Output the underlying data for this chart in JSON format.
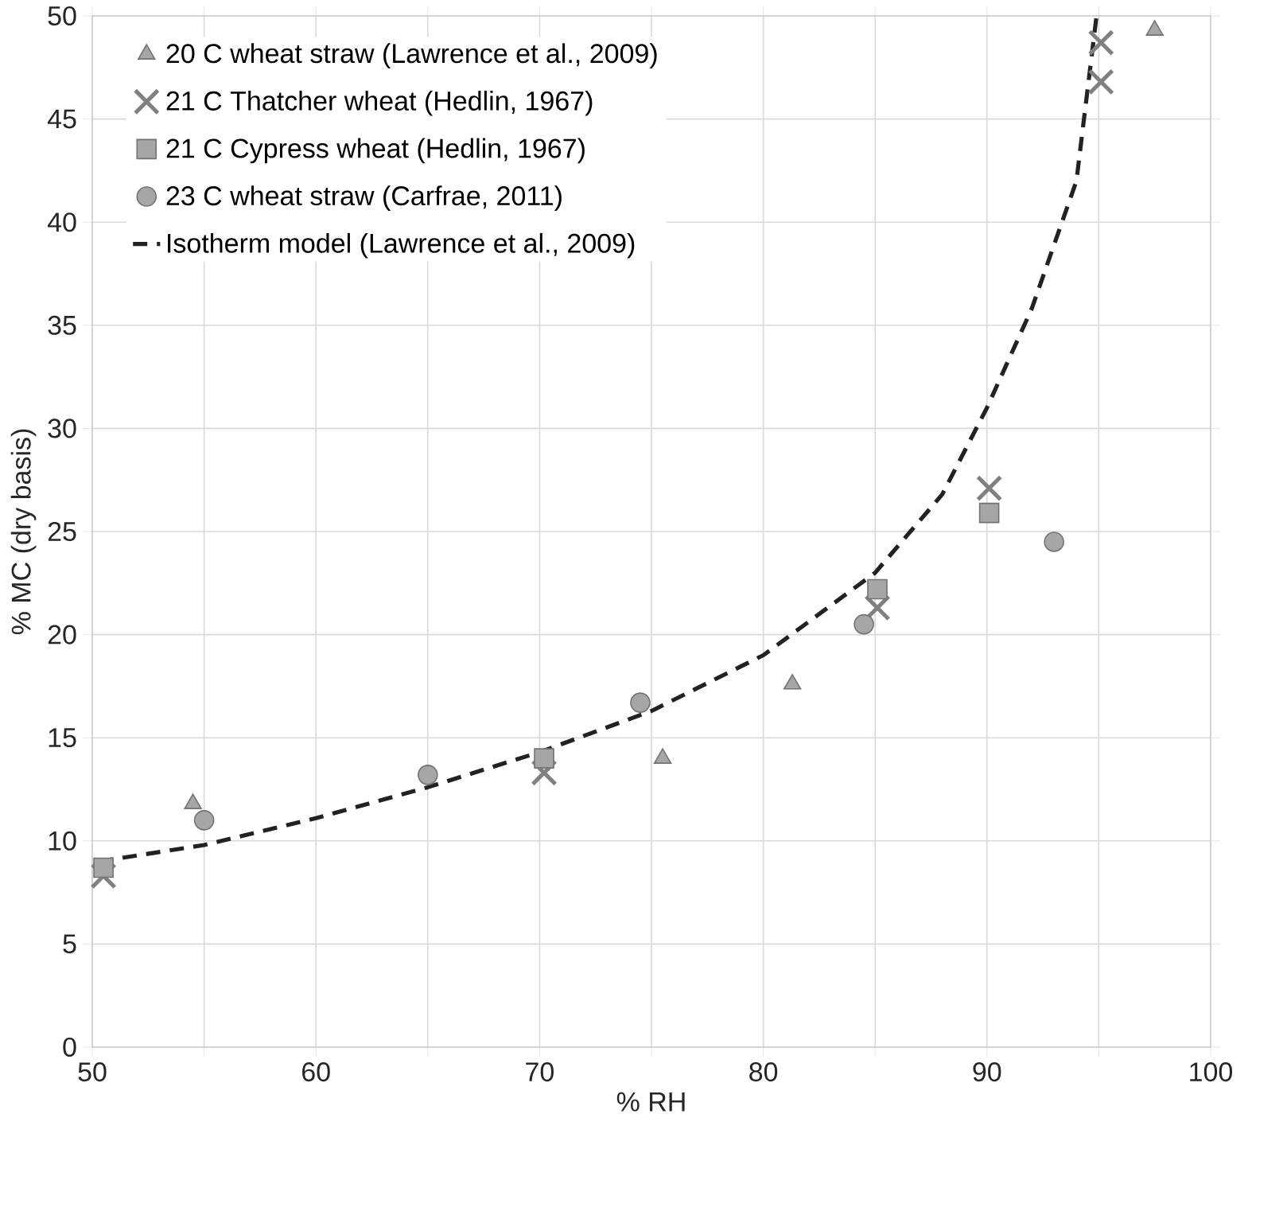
{
  "chart_data": {
    "type": "scatter",
    "xlabel": "% RH",
    "ylabel": "% MC (dry basis)",
    "xlim": [
      50,
      100
    ],
    "ylim": [
      0,
      50
    ],
    "xticks": [
      50,
      {
        "value": 55,
        "label": null
      },
      60,
      {
        "value": 65,
        "label": null
      },
      70,
      {
        "value": 75,
        "label": null
      },
      80,
      {
        "value": 85,
        "label": null
      },
      90,
      {
        "value": 95,
        "label": null
      },
      100
    ],
    "yticks": [
      0,
      5,
      10,
      15,
      20,
      25,
      30,
      35,
      40,
      45,
      50
    ],
    "grid": true,
    "legend": "top left",
    "series": [
      {
        "name": "20 C wheat straw (Lawrence et al., 2009)",
        "marker": "triangle",
        "color": "#a6a6a6",
        "x": [
          54.5,
          75.5,
          81.3,
          97.5
        ],
        "values": [
          11.8,
          14.0,
          17.6,
          49.3
        ]
      },
      {
        "name": "21 C Thatcher wheat (Hedlin, 1967)",
        "marker": "cross",
        "color": "#808080",
        "x": [
          50.5,
          70.2,
          85.1,
          90.1,
          95.1,
          95.1
        ],
        "values": [
          8.3,
          13.3,
          21.3,
          27.1,
          46.8,
          48.7
        ]
      },
      {
        "name": "21 C Cypress wheat (Hedlin, 1967)",
        "marker": "square",
        "color": "#a6a6a6",
        "x": [
          50.5,
          70.2,
          85.1,
          90.1
        ],
        "values": [
          8.7,
          14.0,
          22.2,
          25.9
        ]
      },
      {
        "name": "23 C wheat straw (Carfrae, 2011)",
        "marker": "circle",
        "color": "#a6a6a6",
        "x": [
          55.0,
          65.0,
          74.5,
          84.5,
          93.0
        ],
        "values": [
          11.0,
          13.2,
          16.7,
          20.5,
          24.5
        ]
      },
      {
        "name": "Isotherm model (Lawrence et al., 2009)",
        "type": "line",
        "line_style": "dashed",
        "marker": "none",
        "color": "#222222",
        "x": [
          50.3,
          55,
          60,
          65,
          70,
          75,
          80,
          85,
          88,
          90,
          92,
          94,
          94.9
        ],
        "values": [
          9.0,
          9.8,
          11.1,
          12.6,
          14.3,
          16.3,
          19.0,
          23.0,
          26.8,
          31.0,
          35.8,
          42.0,
          50.0
        ]
      }
    ]
  }
}
